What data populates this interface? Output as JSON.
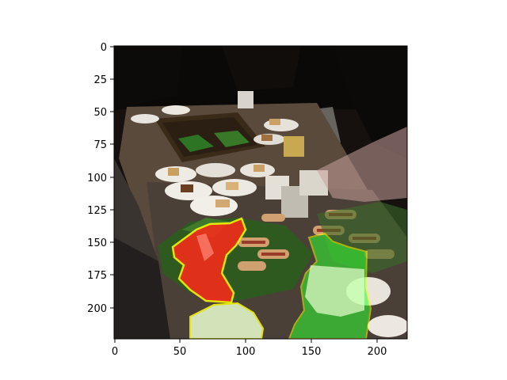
{
  "figure": {
    "image_description": "Overhead photo of a buffet table with plates of cake, hot dogs on buns, sliced fruit and cups; segmentation overlays highlight regions in red/yellow and green.",
    "x_axis": {
      "ticks": [
        "0",
        "50",
        "100",
        "150",
        "200"
      ],
      "range": [
        0,
        224
      ]
    },
    "y_axis": {
      "ticks": [
        "0",
        "25",
        "50",
        "75",
        "100",
        "125",
        "150",
        "175",
        "200"
      ],
      "range": [
        0,
        224
      ]
    },
    "overlay_colors": {
      "red_mask": "#ff2a1a",
      "red_outline": "#ffff00",
      "green_mask": "#33ff33",
      "green_outline": "#ffff00",
      "pale_mask": "#eaffd0"
    }
  }
}
